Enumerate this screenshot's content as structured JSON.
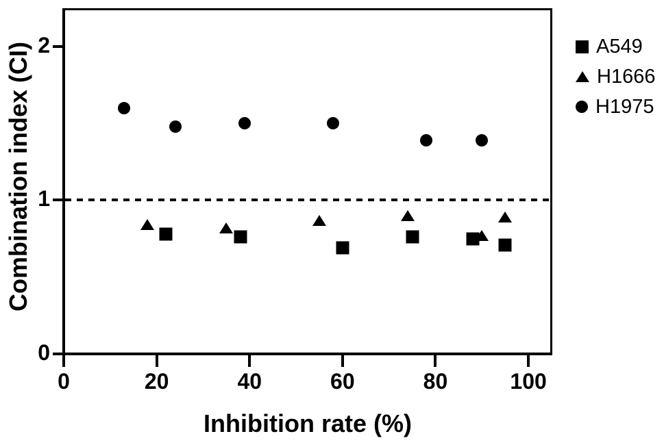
{
  "chart_data": {
    "type": "scatter",
    "title": "",
    "xlabel": "Inhibition rate (%)",
    "ylabel": "Combination index (CI)",
    "xlim": [
      0,
      105
    ],
    "ylim": [
      0,
      2.24
    ],
    "x_ticks": [
      "0",
      "20",
      "40",
      "60",
      "80",
      "100"
    ],
    "x_tick_values": [
      0,
      20,
      40,
      60,
      80,
      100
    ],
    "y_ticks": [
      "0",
      "1",
      "2"
    ],
    "y_tick_values": [
      0,
      1,
      2
    ],
    "grid": false,
    "legend_position": "right-outside",
    "reference_line": {
      "y": 1,
      "style": "dashed"
    },
    "series": [
      {
        "name": "A549",
        "marker": "square",
        "points": [
          [
            22,
            0.78
          ],
          [
            38,
            0.76
          ],
          [
            60,
            0.69
          ],
          [
            75,
            0.76
          ],
          [
            88,
            0.75
          ],
          [
            95,
            0.71
          ]
        ]
      },
      {
        "name": "H1666",
        "marker": "triangle",
        "points": [
          [
            18,
            0.84
          ],
          [
            35,
            0.82
          ],
          [
            55,
            0.87
          ],
          [
            74,
            0.9
          ],
          [
            90,
            0.77
          ],
          [
            95,
            0.89
          ]
        ]
      },
      {
        "name": "H1975",
        "marker": "circle",
        "points": [
          [
            13,
            1.6
          ],
          [
            24,
            1.48
          ],
          [
            39,
            1.5
          ],
          [
            58,
            1.5
          ],
          [
            78,
            1.39
          ],
          [
            90,
            1.39
          ]
        ]
      }
    ],
    "colors": {
      "marker": "#000000",
      "background": "#ffffff",
      "axis": "#000000"
    }
  }
}
